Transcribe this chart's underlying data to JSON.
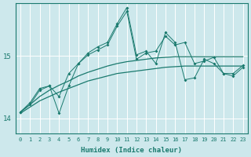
{
  "xlabel": "Humidex (Indice chaleur)",
  "bg_color": "#cde8ec",
  "grid_color": "#ffffff",
  "line_color": "#1a7a6e",
  "xlim": [
    -0.5,
    23.5
  ],
  "ylim": [
    13.75,
    15.85
  ],
  "yticks": [
    14,
    15
  ],
  "xticks": [
    0,
    1,
    2,
    3,
    4,
    5,
    6,
    7,
    8,
    9,
    10,
    11,
    12,
    13,
    14,
    15,
    16,
    17,
    18,
    19,
    20,
    21,
    22,
    23
  ],
  "x": [
    0,
    1,
    2,
    3,
    4,
    5,
    6,
    7,
    8,
    9,
    10,
    11,
    12,
    13,
    14,
    15,
    16,
    17,
    18,
    19,
    20,
    21,
    22,
    23
  ],
  "jagged1": [
    14.1,
    14.25,
    14.48,
    14.52,
    14.08,
    14.52,
    14.88,
    15.05,
    15.15,
    15.22,
    15.52,
    15.78,
    15.02,
    15.08,
    14.88,
    15.38,
    15.22,
    14.62,
    14.65,
    14.95,
    14.88,
    14.72,
    14.68,
    14.82
  ],
  "jagged2": [
    14.1,
    14.22,
    14.45,
    14.52,
    14.35,
    14.72,
    14.88,
    15.02,
    15.1,
    15.18,
    15.48,
    15.72,
    14.95,
    15.05,
    15.08,
    15.32,
    15.18,
    15.22,
    14.88,
    14.92,
    14.98,
    14.72,
    14.72,
    14.85
  ],
  "smooth_low": [
    14.08,
    14.18,
    14.28,
    14.35,
    14.42,
    14.48,
    14.54,
    14.6,
    14.64,
    14.68,
    14.72,
    14.74,
    14.76,
    14.78,
    14.8,
    14.82,
    14.83,
    14.84,
    14.84,
    14.84,
    14.84,
    14.84,
    14.84,
    14.84
  ],
  "smooth_high": [
    14.1,
    14.22,
    14.35,
    14.45,
    14.53,
    14.6,
    14.68,
    14.74,
    14.79,
    14.84,
    14.88,
    14.91,
    14.93,
    14.95,
    14.97,
    14.98,
    14.99,
    14.99,
    14.99,
    14.99,
    14.99,
    14.99,
    14.99,
    14.99
  ]
}
